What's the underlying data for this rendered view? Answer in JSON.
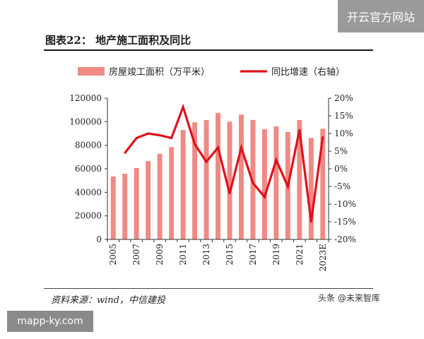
{
  "watermark_top": "开云官方网站",
  "watermark_bottom": "mapp-ky.com",
  "watermark_source": "头条 @未来智库",
  "figure_title": "图表22： 地产施工面积及同比",
  "source_note": "资料来源：wind，中信建投",
  "colors": {
    "bar": "#f08a84",
    "line": "#e0111b"
  },
  "chart_data": {
    "type": "bar",
    "title": "",
    "legend_placement": "top",
    "categories": [
      "2005",
      "2006",
      "2007",
      "2008",
      "2009",
      "2010",
      "2011",
      "2012",
      "2013",
      "2014",
      "2015",
      "2016",
      "2017",
      "2018",
      "2019",
      "2020",
      "2021",
      "2022",
      "2023E"
    ],
    "x_tick_labels": [
      "2005",
      "2007",
      "2009",
      "2011",
      "2013",
      "2015",
      "2017",
      "2019",
      "2021",
      "2023E"
    ],
    "series": [
      {
        "name": "房屋竣工面积（万平米）",
        "type": "bar",
        "axis": "left",
        "values": [
          53500,
          55800,
          60600,
          66500,
          72700,
          78400,
          93000,
          99500,
          101400,
          107500,
          100000,
          106100,
          101500,
          93600,
          96000,
          91200,
          101400,
          86200,
          94000
        ]
      },
      {
        "name": "同比增速（右轴）",
        "type": "line",
        "axis": "right",
        "values": [
          null,
          4.5,
          8.7,
          10.0,
          9.5,
          8.7,
          17.5,
          7.0,
          2.0,
          6.0,
          -7.0,
          6.0,
          -4.0,
          -8.0,
          2.5,
          -5.0,
          11.0,
          -15.0,
          9.0
        ]
      }
    ],
    "y_left": {
      "min": 0,
      "max": 120000,
      "ticks": [
        "0",
        "20000",
        "40000",
        "60000",
        "80000",
        "100000",
        "120000"
      ]
    },
    "y_right": {
      "min": -20,
      "max": 20,
      "ticks": [
        "-20%",
        "-15%",
        "-10%",
        "-5%",
        "0%",
        "5%",
        "10%",
        "15%",
        "20%"
      ]
    },
    "grid": false
  }
}
